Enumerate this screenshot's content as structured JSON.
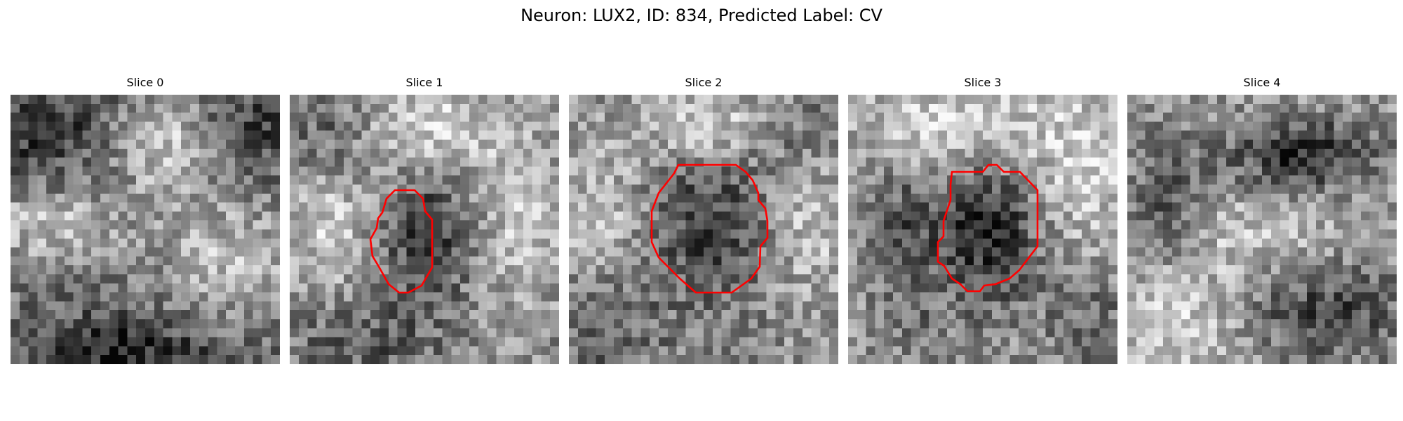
{
  "figure": {
    "title": "Neuron: LUX2, ID: 834, Predicted Label: CV"
  },
  "panels": [
    {
      "title": "Slice 0",
      "has_roi": false
    },
    {
      "title": "Slice 1",
      "has_roi": true
    },
    {
      "title": "Slice 2",
      "has_roi": true
    },
    {
      "title": "Slice 3",
      "has_roi": true
    },
    {
      "title": "Slice 4",
      "has_roi": false
    }
  ],
  "colors": {
    "roi_outline": "#ff0000",
    "background": "#ffffff",
    "colormap": "grayscale"
  }
}
